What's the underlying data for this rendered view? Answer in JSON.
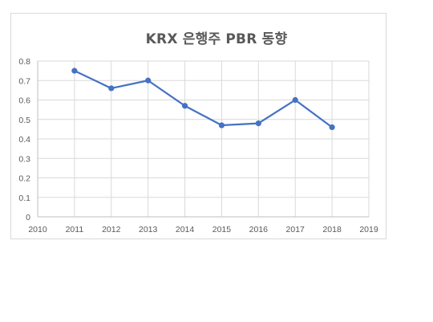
{
  "chart_data": {
    "type": "line",
    "title": "KRX 은행주 PBR 동향",
    "xlabel": "",
    "ylabel": "",
    "xlim": [
      2010,
      2019
    ],
    "ylim": [
      0,
      0.8
    ],
    "x_ticks": [
      "2010",
      "2011",
      "2012",
      "2013",
      "2014",
      "2015",
      "2016",
      "2017",
      "2018",
      "2019"
    ],
    "y_ticks": [
      "0",
      "0.1",
      "0.2",
      "0.3",
      "0.4",
      "0.5",
      "0.6",
      "0.7",
      "0.8"
    ],
    "grid": true,
    "legend": "none",
    "series": [
      {
        "x": [
          2011,
          2012,
          2013,
          2014,
          2015,
          2016,
          2017,
          2018
        ],
        "y": [
          0.75,
          0.66,
          0.7,
          0.57,
          0.47,
          0.48,
          0.6,
          0.46
        ],
        "color": "#4472c4"
      }
    ]
  }
}
